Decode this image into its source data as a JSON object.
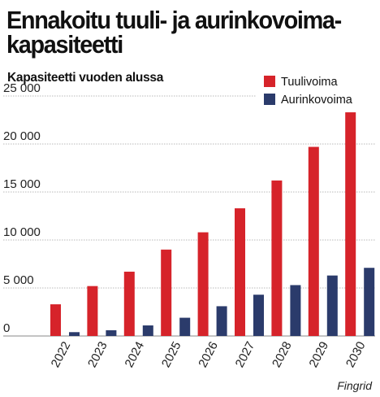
{
  "header": {
    "title": "Ennakoitu tuuli- ja aurinkovoima-kapasiteetti",
    "subtitle": "Kapasiteetti vuoden alussa"
  },
  "source": "Fingrid",
  "colors": {
    "Tuulivoima": "#d6232a",
    "Aurinkovoima": "#2b3b6b",
    "grid": "#b8b8b8"
  },
  "chart_data": {
    "type": "bar",
    "title": "Ennakoitu tuuli- ja aurinkovoima-kapasiteetti",
    "subtitle": "Kapasiteetti vuoden alussa",
    "categories": [
      "2022",
      "2023",
      "2024",
      "2025",
      "2026",
      "2027",
      "2028",
      "2029",
      "2030"
    ],
    "series": [
      {
        "name": "Tuulivoima",
        "values": [
          3300,
          5200,
          6700,
          9000,
          10800,
          13300,
          16200,
          19700,
          23300
        ]
      },
      {
        "name": "Aurinkovoima",
        "values": [
          400,
          600,
          1100,
          1900,
          3100,
          4300,
          5300,
          6300,
          7100
        ]
      }
    ],
    "ylim": [
      0,
      25000
    ],
    "yticks": [
      0,
      5000,
      10000,
      15000,
      20000,
      25000
    ],
    "ytick_labels": [
      "0",
      "5 000",
      "10 000",
      "15 000",
      "20 000",
      "25 000"
    ],
    "grid": true,
    "legend": "top-right"
  }
}
